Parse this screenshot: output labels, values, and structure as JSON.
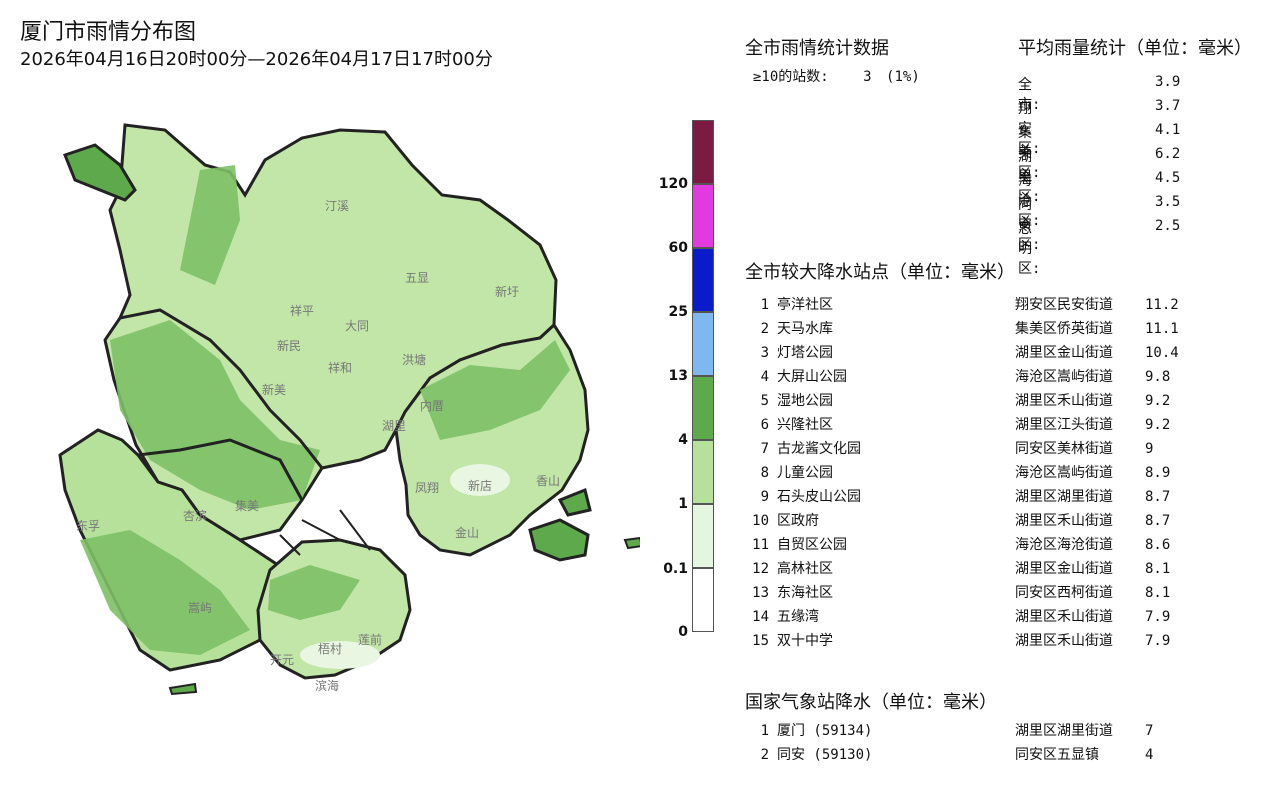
{
  "header": {
    "title": "厦门市雨情分布图",
    "period": "2026年04月16日20时00分—2026年04月17日17时00分"
  },
  "legend": {
    "ticks": [
      "120",
      "60",
      "25",
      "13",
      "4",
      "1",
      "0.1",
      "0"
    ],
    "colors": [
      "#7b1a43",
      "#e33ae0",
      "#0a1bcc",
      "#7fb7f0",
      "#5ea94c",
      "#b6e19a",
      "#e4f5e0",
      "#ffffff"
    ]
  },
  "stats": {
    "title": "全市雨情统计数据",
    "line_label": "≥10的站数:",
    "line_count": "3",
    "line_pct": "(1%)"
  },
  "average": {
    "title": "平均雨量统计（单位：毫米）",
    "rows": [
      {
        "name": "全市:",
        "value": "3.9"
      },
      {
        "name": "翔安区:",
        "value": "3.7"
      },
      {
        "name": "集美区:",
        "value": "4.1"
      },
      {
        "name": "湖里区:",
        "value": "6.2"
      },
      {
        "name": "海沧区:",
        "value": "4.5"
      },
      {
        "name": "同安区:",
        "value": "3.5"
      },
      {
        "name": "思明区:",
        "value": "2.5"
      }
    ]
  },
  "stations": {
    "title": "全市较大降水站点（单位：毫米）",
    "rows": [
      {
        "idx": "1",
        "name": "亭洋社区",
        "district": "翔安区民安街道",
        "value": "11.2"
      },
      {
        "idx": "2",
        "name": "天马水库",
        "district": "集美区侨英街道",
        "value": "11.1"
      },
      {
        "idx": "3",
        "name": "灯塔公园",
        "district": "湖里区金山街道",
        "value": "10.4"
      },
      {
        "idx": "4",
        "name": "大屏山公园",
        "district": "海沧区嵩屿街道",
        "value": "9.8"
      },
      {
        "idx": "5",
        "name": "湿地公园",
        "district": "湖里区禾山街道",
        "value": "9.2"
      },
      {
        "idx": "6",
        "name": "兴隆社区",
        "district": "湖里区江头街道",
        "value": "9.2"
      },
      {
        "idx": "7",
        "name": "古龙酱文化园",
        "district": "同安区美林街道",
        "value": "9"
      },
      {
        "idx": "8",
        "name": "儿童公园",
        "district": "海沧区嵩屿街道",
        "value": "8.9"
      },
      {
        "idx": "9",
        "name": "石头皮山公园",
        "district": "湖里区湖里街道",
        "value": "8.7"
      },
      {
        "idx": "10",
        "name": "区政府",
        "district": "湖里区禾山街道",
        "value": "8.7"
      },
      {
        "idx": "11",
        "name": "自贸区公园",
        "district": "海沧区海沧街道",
        "value": "8.6"
      },
      {
        "idx": "12",
        "name": "高林社区",
        "district": "湖里区金山街道",
        "value": "8.1"
      },
      {
        "idx": "13",
        "name": "东海社区",
        "district": "同安区西柯街道",
        "value": "8.1"
      },
      {
        "idx": "14",
        "name": "五缘湾",
        "district": "湖里区禾山街道",
        "value": "7.9"
      },
      {
        "idx": "15",
        "name": "双十中学",
        "district": "湖里区禾山街道",
        "value": "7.9"
      }
    ]
  },
  "national": {
    "title": "国家气象站降水（单位：毫米）",
    "rows": [
      {
        "idx": "1",
        "name": "厦门 (59134)",
        "district": "湖里区湖里街道",
        "value": "7"
      },
      {
        "idx": "2",
        "name": "同安 (59130)",
        "district": "同安区五显镇",
        "value": "4"
      }
    ]
  },
  "map_labels": [
    "汀溪",
    "五显",
    "新圩",
    "祥平",
    "大同",
    "新民",
    "洪塘",
    "祥和",
    "新美",
    "内厝",
    "凤翔",
    "新店",
    "香山",
    "东孚",
    "杏滨",
    "集美",
    "金山",
    "湖里",
    "嵩屿",
    "梧村",
    "莲前",
    "滨海",
    "开元"
  ]
}
